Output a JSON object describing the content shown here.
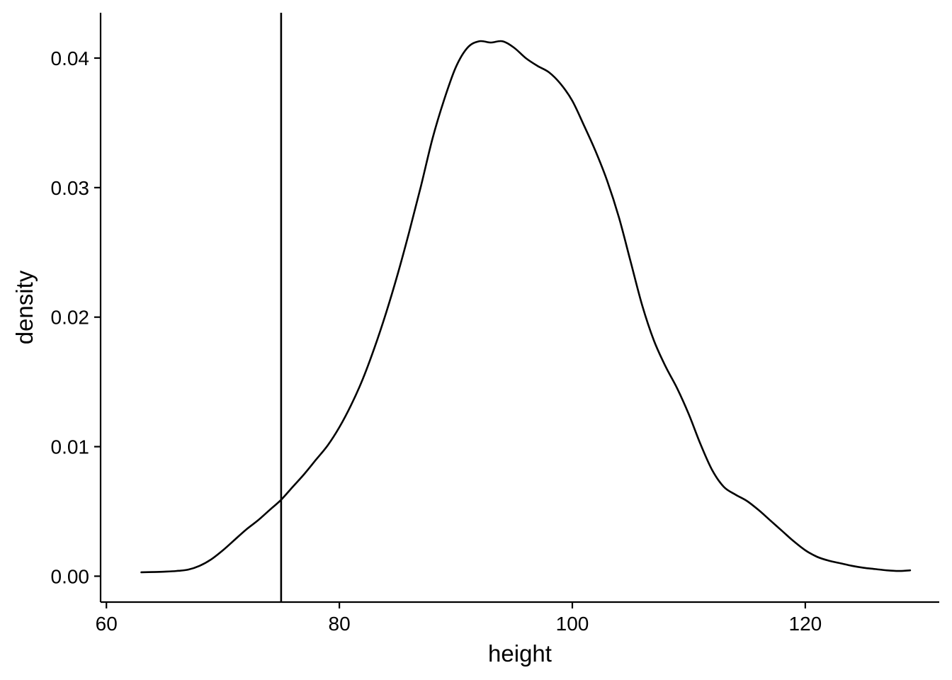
{
  "chart_data": {
    "type": "line",
    "title": "",
    "xlabel": "height",
    "ylabel": "density",
    "xlim": [
      59.5,
      131.5
    ],
    "ylim": [
      -0.002,
      0.0435
    ],
    "x_ticks": [
      60,
      80,
      100,
      120
    ],
    "y_ticks": [
      0.0,
      0.01,
      0.02,
      0.03,
      0.04
    ],
    "x_tick_labels": [
      "60",
      "80",
      "100",
      "120"
    ],
    "y_tick_labels": [
      "0.00",
      "0.01",
      "0.02",
      "0.03",
      "0.04"
    ],
    "grid": false,
    "legend": "none",
    "line_color": "#000000",
    "vline_x": 75,
    "series": [
      {
        "x": [
          63,
          64,
          65,
          66,
          67,
          68,
          69,
          70,
          71,
          72,
          73,
          74,
          75,
          76,
          77,
          78,
          79,
          80,
          81,
          82,
          83,
          84,
          85,
          86,
          87,
          88,
          89,
          90,
          91,
          92,
          93,
          94,
          95,
          96,
          97,
          98,
          99,
          100,
          101,
          102,
          103,
          104,
          105,
          106,
          107,
          108,
          109,
          110,
          111,
          112,
          113,
          114,
          115,
          116,
          117,
          118,
          119,
          120,
          121,
          122,
          123,
          124,
          125,
          126,
          127,
          128,
          129
        ],
        "y": [
          0.0003,
          0.00032,
          0.00035,
          0.0004,
          0.0005,
          0.0008,
          0.0013,
          0.002,
          0.0028,
          0.0036,
          0.0043,
          0.0051,
          0.0059,
          0.0069,
          0.0079,
          0.009,
          0.0101,
          0.0115,
          0.0132,
          0.0152,
          0.0176,
          0.0203,
          0.0233,
          0.0266,
          0.0301,
          0.0338,
          0.0368,
          0.0393,
          0.0408,
          0.0413,
          0.0412,
          0.0413,
          0.0408,
          0.04,
          0.0394,
          0.0389,
          0.038,
          0.0367,
          0.0348,
          0.0328,
          0.0305,
          0.0277,
          0.0243,
          0.0209,
          0.0182,
          0.0162,
          0.0145,
          0.0125,
          0.0102,
          0.0082,
          0.0069,
          0.0063,
          0.0058,
          0.0051,
          0.0043,
          0.0035,
          0.0027,
          0.002,
          0.0015,
          0.0012,
          0.001,
          0.0008,
          0.00065,
          0.00055,
          0.00045,
          0.0004,
          0.00045
        ]
      }
    ]
  }
}
